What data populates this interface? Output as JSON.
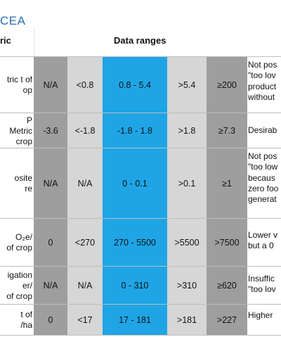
{
  "title": "CEA",
  "headers": {
    "metric": "ric",
    "ranges": "Data ranges"
  },
  "rows": [
    {
      "metric": [
        "tric t of",
        "op"
      ],
      "values": [
        "N/A",
        "<0.8",
        "0.8 - 5.4",
        ">5.4",
        "≥200"
      ],
      "desc": [
        "Not pos",
        "\"too lov",
        "product",
        "without"
      ]
    },
    {
      "metric": [
        "P",
        "Metric",
        "crop"
      ],
      "values": [
        "-3.6",
        "<-1.8",
        "-1.8 - 1.8",
        ">1.8",
        "≥7.3"
      ],
      "desc": [
        "Desirab"
      ]
    },
    {
      "metric": [
        "osite",
        "re"
      ],
      "values": [
        "N/A",
        "N/A",
        "0 - 0.1",
        ">0.1",
        "≥1"
      ],
      "desc": [
        "Not pos",
        "\"too low",
        "becaus",
        "zero foo",
        "generat"
      ]
    },
    {
      "metric": [
        "O₂e/",
        "of crop"
      ],
      "values": [
        "0",
        "<270",
        "270 - 5500",
        ">5500",
        ">7500"
      ],
      "desc": [
        "Lower v",
        "but a 0"
      ]
    },
    {
      "metric": [
        "igation",
        "er/",
        "of crop"
      ],
      "values": [
        "N/A",
        "N/A",
        "0 - 310",
        ">310",
        "≥620"
      ],
      "desc": [
        "Insuffic",
        "\"too lov"
      ]
    },
    {
      "metric": [
        "t of",
        "/ha"
      ],
      "values": [
        "0",
        "<17",
        "17 - 181",
        ">181",
        ">227"
      ],
      "desc": [
        "Higher"
      ]
    }
  ]
}
